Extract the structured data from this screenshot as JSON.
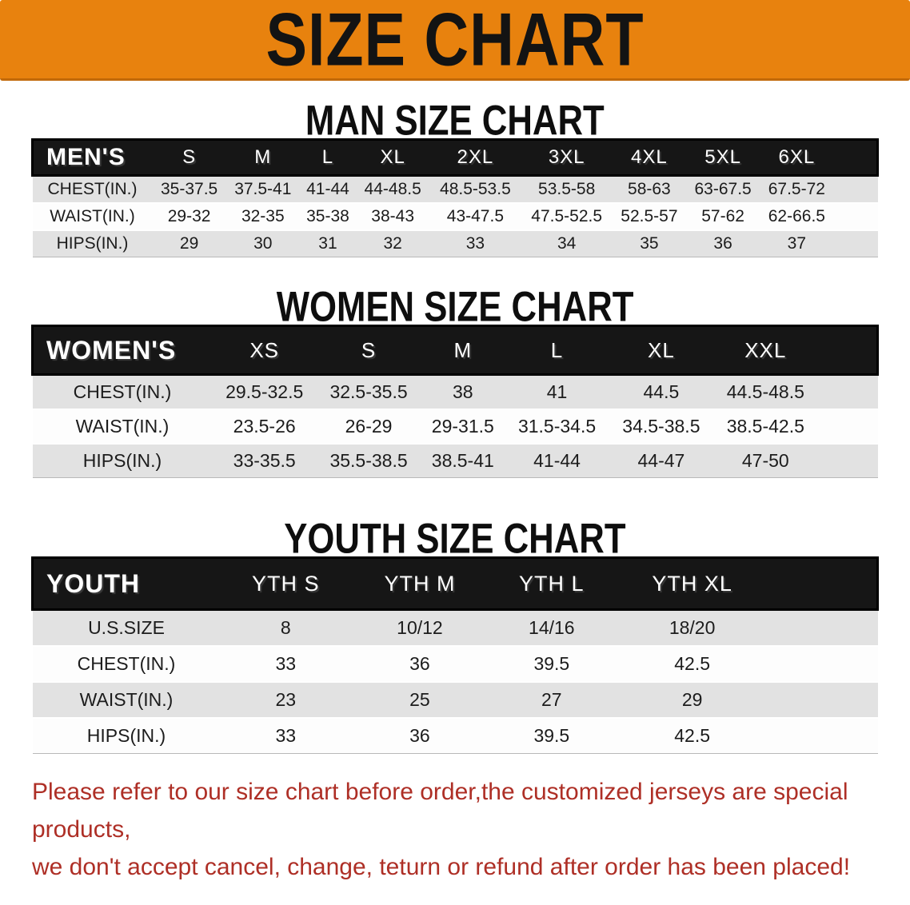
{
  "banner": {
    "title": "SIZE CHART",
    "bg": "#E8820E"
  },
  "sections": [
    {
      "heading": "MAN SIZE CHART",
      "label_header": "MEN'S",
      "columns": [
        "S",
        "M",
        "L",
        "XL",
        "2XL",
        "3XL",
        "4XL",
        "5XL",
        "6XL"
      ],
      "rows": [
        {
          "label": "CHEST(IN.)",
          "values": [
            "35-37.5",
            "37.5-41",
            "41-44",
            "44-48.5",
            "48.5-53.5",
            "53.5-58",
            "58-63",
            "63-67.5",
            "67.5-72"
          ]
        },
        {
          "label": "WAIST(IN.)",
          "values": [
            "29-32",
            "32-35",
            "35-38",
            "38-43",
            "43-47.5",
            "47.5-52.5",
            "52.5-57",
            "57-62",
            "62-66.5"
          ]
        },
        {
          "label": "HIPS(IN.)",
          "values": [
            "29",
            "30",
            "31",
            "32",
            "33",
            "34",
            "35",
            "36",
            "37"
          ]
        }
      ]
    },
    {
      "heading": "WOMEN SIZE CHART",
      "label_header": "WOMEN'S",
      "columns": [
        "XS",
        "S",
        "M",
        "L",
        "XL",
        "XXL"
      ],
      "rows": [
        {
          "label": "CHEST(IN.)",
          "values": [
            "29.5-32.5",
            "32.5-35.5",
            "38",
            "41",
            "44.5",
            "44.5-48.5"
          ]
        },
        {
          "label": "WAIST(IN.)",
          "values": [
            "23.5-26",
            "26-29",
            "29-31.5",
            "31.5-34.5",
            "34.5-38.5",
            "38.5-42.5"
          ]
        },
        {
          "label": "HIPS(IN.)",
          "values": [
            "33-35.5",
            "35.5-38.5",
            "38.5-41",
            "41-44",
            "44-47",
            "47-50"
          ]
        }
      ]
    },
    {
      "heading": "YOUTH SIZE CHART",
      "label_header": "YOUTH",
      "columns": [
        "YTH S",
        "YTH M",
        "YTH L",
        "YTH XL"
      ],
      "rows": [
        {
          "label": "U.S.SIZE",
          "values": [
            "8",
            "10/12",
            "14/16",
            "18/20"
          ]
        },
        {
          "label": "CHEST(IN.)",
          "values": [
            "33",
            "36",
            "39.5",
            "42.5"
          ]
        },
        {
          "label": "WAIST(IN.)",
          "values": [
            "23",
            "25",
            "27",
            "29"
          ]
        },
        {
          "label": "HIPS(IN.)",
          "values": [
            "33",
            "36",
            "39.5",
            "42.5"
          ]
        }
      ]
    }
  ],
  "footer": {
    "line1": "Please refer to our size chart before order,the customized jerseys are special products,",
    "line2": "we don't accept cancel, change, teturn or refund after order has been placed!",
    "color": "#AE2F26"
  }
}
